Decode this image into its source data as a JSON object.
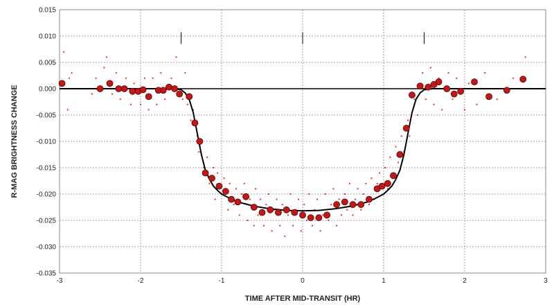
{
  "chart_data": {
    "type": "scatter",
    "title": "",
    "xlabel": "TIME AFTER MID-TRANSIT (HR)",
    "ylabel": "R-MAG BRIGHTNESS CHANGE",
    "xlim": [
      -3,
      3
    ],
    "ylim": [
      -0.035,
      0.015
    ],
    "x_ticks": [
      -3,
      -2,
      -1,
      0,
      1,
      2,
      3
    ],
    "x_tick_labels": [
      "-3",
      "-2",
      "-1",
      "0",
      "1",
      "2",
      "3"
    ],
    "y_ticks": [
      0.015,
      0.01,
      0.005,
      0.0,
      -0.005,
      -0.01,
      -0.015,
      -0.02,
      -0.025,
      -0.03,
      -0.035
    ],
    "y_tick_labels": [
      "0.015",
      "0.010",
      "0.005",
      "0.000",
      "-0.005",
      "-0.010",
      "-0.015",
      "-0.020",
      "-0.025",
      "-0.030",
      "-0.035"
    ],
    "grid": true,
    "legend": "none",
    "contact_markers_x": [
      -1.5,
      0,
      1.5
    ],
    "colors": {
      "binned_points": "#c01818",
      "raw_points": "#e03030",
      "model_curve": "#000000",
      "grid": "#888888"
    },
    "series": [
      {
        "kind": "binned",
        "x": [
          -2.97,
          -2.5,
          -2.38,
          -2.27,
          -2.2,
          -2.1,
          -2.03,
          -1.97,
          -1.9,
          -1.78,
          -1.72,
          -1.65,
          -1.58,
          -1.52,
          -1.4,
          -1.33,
          -1.27,
          -1.2,
          -1.12,
          -1.03,
          -0.95,
          -0.88,
          -0.8,
          -0.7,
          -0.6,
          -0.5,
          -0.4,
          -0.3,
          -0.2,
          -0.1,
          0.0,
          0.1,
          0.2,
          0.3,
          0.42,
          0.52,
          0.62,
          0.72,
          0.82,
          0.92,
          0.98,
          1.05,
          1.12,
          1.2,
          1.28,
          1.35,
          1.45,
          1.55,
          1.62,
          1.68,
          1.78,
          1.87,
          1.95,
          2.12,
          2.3,
          2.52,
          2.72
        ],
        "y": [
          0.001,
          0.0,
          0.001,
          0.0,
          0.0,
          -0.0005,
          -0.0005,
          -0.0002,
          -0.0015,
          -0.0003,
          -0.0003,
          0.0003,
          0.0,
          -0.001,
          -0.0015,
          -0.0065,
          -0.01,
          -0.016,
          -0.017,
          -0.0185,
          -0.0195,
          -0.021,
          -0.0215,
          -0.0205,
          -0.0225,
          -0.0235,
          -0.023,
          -0.0235,
          -0.023,
          -0.0235,
          -0.024,
          -0.0245,
          -0.0245,
          -0.024,
          -0.022,
          -0.0215,
          -0.022,
          -0.022,
          -0.021,
          -0.019,
          -0.0185,
          -0.018,
          -0.0165,
          -0.0125,
          -0.0075,
          -0.0012,
          0.0005,
          0.0003,
          0.0008,
          0.0013,
          0.0,
          -0.001,
          -0.0005,
          0.0013,
          -0.0015,
          -0.0003,
          0.0018
        ]
      },
      {
        "kind": "raw",
        "x": [
          -2.95,
          -2.9,
          -2.88,
          -2.85,
          -2.6,
          -2.55,
          -2.45,
          -2.42,
          -2.35,
          -2.3,
          -2.25,
          -2.18,
          -2.12,
          -2.08,
          -2.0,
          -1.95,
          -1.9,
          -1.85,
          -1.8,
          -1.75,
          -1.7,
          -1.62,
          -1.56,
          -1.48,
          -1.45,
          -1.42,
          -1.38,
          -1.35,
          -1.3,
          -1.28,
          -1.22,
          -1.18,
          -1.15,
          -1.1,
          -1.08,
          -1.05,
          -1.0,
          -0.97,
          -0.92,
          -0.9,
          -0.85,
          -0.82,
          -0.78,
          -0.75,
          -0.72,
          -0.68,
          -0.65,
          -0.6,
          -0.58,
          -0.55,
          -0.52,
          -0.48,
          -0.45,
          -0.42,
          -0.38,
          -0.35,
          -0.32,
          -0.28,
          -0.25,
          -0.22,
          -0.18,
          -0.15,
          -0.12,
          -0.08,
          -0.05,
          -0.02,
          0.02,
          0.05,
          0.08,
          0.12,
          0.15,
          0.18,
          0.22,
          0.25,
          0.28,
          0.32,
          0.35,
          0.38,
          0.42,
          0.45,
          0.48,
          0.52,
          0.55,
          0.58,
          0.62,
          0.65,
          0.68,
          0.72,
          0.75,
          0.78,
          0.82,
          0.85,
          0.88,
          0.92,
          0.95,
          1.0,
          1.02,
          1.05,
          1.08,
          1.12,
          1.15,
          1.18,
          1.22,
          1.25,
          1.3,
          1.32,
          1.38,
          1.42,
          1.48,
          1.52,
          1.58,
          1.62,
          1.68,
          1.72,
          1.8,
          1.85,
          1.9,
          2.0,
          2.05,
          2.15,
          2.25,
          2.4,
          2.6,
          2.75
        ],
        "y": [
          0.007,
          -0.004,
          0.002,
          0.003,
          -0.001,
          0.002,
          0.004,
          0.006,
          -0.001,
          0.003,
          -0.002,
          0.002,
          -0.003,
          0.001,
          -0.003,
          0.002,
          -0.004,
          0.002,
          -0.003,
          0.003,
          -0.002,
          0.002,
          0.006,
          -0.002,
          0.003,
          -0.003,
          -0.006,
          -0.004,
          -0.009,
          -0.012,
          -0.015,
          -0.013,
          -0.018,
          -0.015,
          -0.021,
          -0.016,
          -0.02,
          -0.017,
          -0.023,
          -0.018,
          -0.022,
          -0.019,
          -0.024,
          -0.02,
          -0.018,
          -0.025,
          -0.021,
          -0.026,
          -0.019,
          -0.024,
          -0.021,
          -0.026,
          -0.022,
          -0.02,
          -0.027,
          -0.023,
          -0.021,
          -0.026,
          -0.022,
          -0.028,
          -0.024,
          -0.02,
          -0.026,
          -0.023,
          -0.021,
          -0.027,
          -0.022,
          -0.025,
          -0.02,
          -0.026,
          -0.023,
          -0.021,
          -0.027,
          -0.024,
          -0.02,
          -0.025,
          -0.022,
          -0.019,
          -0.026,
          -0.021,
          -0.024,
          -0.02,
          -0.023,
          -0.018,
          -0.024,
          -0.021,
          -0.019,
          -0.023,
          -0.02,
          -0.018,
          -0.022,
          -0.017,
          -0.021,
          -0.018,
          -0.016,
          -0.02,
          -0.015,
          -0.019,
          -0.013,
          -0.017,
          -0.011,
          -0.014,
          -0.009,
          -0.012,
          -0.006,
          -0.009,
          -0.002,
          -0.005,
          0.003,
          -0.002,
          0.004,
          -0.003,
          0.002,
          -0.004,
          0.003,
          -0.002,
          0.002,
          -0.004,
          0.001,
          -0.003,
          0.003,
          -0.002,
          0.002,
          0.006
        ]
      },
      {
        "kind": "model",
        "x": [
          -3.0,
          -1.6,
          -1.5,
          -1.45,
          -1.4,
          -1.35,
          -1.3,
          -1.25,
          -1.2,
          -1.15,
          -1.1,
          -1.05,
          -1.0,
          -0.9,
          -0.8,
          -0.6,
          -0.4,
          -0.2,
          0.0,
          0.2,
          0.4,
          0.6,
          0.8,
          0.9,
          1.0,
          1.05,
          1.1,
          1.15,
          1.2,
          1.25,
          1.3,
          1.35,
          1.4,
          1.45,
          1.5,
          1.6,
          3.0
        ],
        "y": [
          0.0,
          0.0,
          -0.0002,
          -0.0008,
          -0.002,
          -0.0045,
          -0.0085,
          -0.0125,
          -0.0155,
          -0.0172,
          -0.0185,
          -0.0193,
          -0.02,
          -0.0208,
          -0.0215,
          -0.0223,
          -0.0228,
          -0.0231,
          -0.0232,
          -0.0231,
          -0.0228,
          -0.0223,
          -0.0215,
          -0.0208,
          -0.02,
          -0.0193,
          -0.0185,
          -0.0172,
          -0.0155,
          -0.0125,
          -0.0085,
          -0.0045,
          -0.002,
          -0.0008,
          -0.0002,
          0.0,
          0.0
        ]
      }
    ]
  }
}
